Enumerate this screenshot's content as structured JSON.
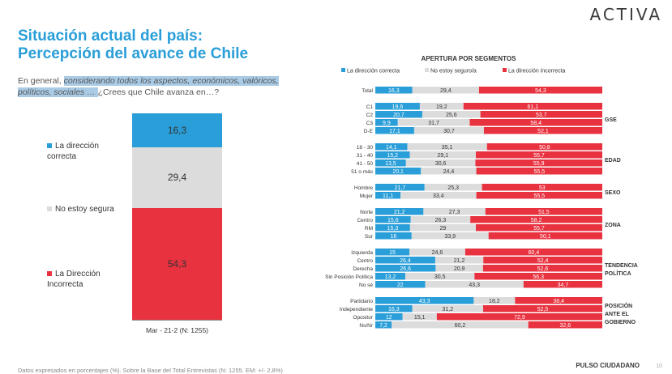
{
  "header": {
    "logo": "ACTIVA",
    "title_line1": "Situación actual del país:",
    "title_line2": "Percepción del avance de Chile"
  },
  "question": {
    "prefix": "En general, ",
    "highlight": "considerando todos los aspectos, económicos, valóricos, políticos, sociales … ",
    "suffix": "¿Crees que Chile avanza en…?"
  },
  "colors": {
    "correct": "#2a9ed8",
    "unsure": "#dcdcdc",
    "incorrect": "#e8323f"
  },
  "left_chart_labels": {
    "correct": "La dirección correcta",
    "unsure": "No estoy segura",
    "incorrect": "La Dirección Incorrecta"
  },
  "footer": {
    "note": "Datos expresados en porcentajes (%). Sobre la Base del Total Entrevistas (N: 1255. EM: +/- 2,8%)",
    "brand": "PULSO CIUDADANO",
    "page": "10"
  },
  "chart_data": [
    {
      "type": "bar",
      "stacked": true,
      "orientation": "vertical",
      "categories": [
        "Mar - 21-2 (N: 1255)"
      ],
      "series": [
        {
          "name": "La dirección correcta",
          "values": [
            16.3
          ]
        },
        {
          "name": "No estoy segura",
          "values": [
            29.4
          ]
        },
        {
          "name": "La Dirección Incorrecta",
          "values": [
            54.3
          ]
        }
      ]
    },
    {
      "type": "bar",
      "stacked": true,
      "orientation": "horizontal",
      "title": "APERTURA POR SEGMENTOS",
      "legend": [
        "La dirección correcta",
        "No estoy seguro/a",
        "La dirección incorrecta"
      ],
      "legend_position": "top",
      "groups": [
        {
          "name": "",
          "rows": [
            {
              "label": "Total",
              "values": [
                16.3,
                29.4,
                54.3
              ]
            }
          ]
        },
        {
          "name": "GSE",
          "rows": [
            {
              "label": "C1",
              "values": [
                19.6,
                19.2,
                61.1
              ]
            },
            {
              "label": "C2",
              "values": [
                20.7,
                25.6,
                53.7
              ]
            },
            {
              "label": "C3",
              "values": [
                9.9,
                31.7,
                58.4
              ]
            },
            {
              "label": "D-E",
              "values": [
                17.1,
                30.7,
                52.1
              ]
            }
          ]
        },
        {
          "name": "EDAD",
          "rows": [
            {
              "label": "18 - 30",
              "values": [
                14.1,
                35.1,
                50.8
              ]
            },
            {
              "label": "31 - 40",
              "values": [
                15.2,
                29.1,
                55.7
              ]
            },
            {
              "label": "41 - 50",
              "values": [
                13.5,
                30.6,
                55.9
              ]
            },
            {
              "label": "51 o más",
              "values": [
                20.1,
                24.4,
                55.5
              ]
            }
          ]
        },
        {
          "name": "SEXO",
          "rows": [
            {
              "label": "Hombre",
              "values": [
                21.7,
                25.3,
                53
              ]
            },
            {
              "label": "Mujer",
              "values": [
                11.1,
                33.4,
                55.5
              ]
            }
          ]
        },
        {
          "name": "ZONA",
          "rows": [
            {
              "label": "Norte",
              "values": [
                21.2,
                27.3,
                51.5
              ]
            },
            {
              "label": "Centro",
              "values": [
                15.6,
                26.3,
                58.2
              ]
            },
            {
              "label": "RM",
              "values": [
                15.3,
                29,
                55.7
              ]
            },
            {
              "label": "Sur",
              "values": [
                16,
                33.9,
                50.1
              ]
            }
          ]
        },
        {
          "name": "TENDENCIA POLÍTICA",
          "rows": [
            {
              "label": "Izquierda",
              "values": [
                15,
                24.6,
                60.4
              ]
            },
            {
              "label": "Centro",
              "values": [
                26.4,
                21.2,
                52.4
              ]
            },
            {
              "label": "Derecha",
              "values": [
                26.6,
                20.9,
                52.6
              ]
            },
            {
              "label": "Sin Posición Política",
              "values": [
                13.2,
                30.5,
                56.3
              ]
            },
            {
              "label": "No sé",
              "values": [
                22,
                43.3,
                34.7
              ]
            }
          ]
        },
        {
          "name": "POSICIÓN ANTE EL GOBIERNO",
          "rows": [
            {
              "label": "Partidario",
              "values": [
                43.3,
                18.2,
                38.4
              ]
            },
            {
              "label": "Independiente",
              "values": [
                16.3,
                31.2,
                52.5
              ]
            },
            {
              "label": "Opositor",
              "values": [
                12,
                15.1,
                72.9
              ]
            },
            {
              "label": "Ns/Nr",
              "values": [
                7.2,
                60.2,
                32.6
              ]
            }
          ]
        }
      ]
    }
  ]
}
